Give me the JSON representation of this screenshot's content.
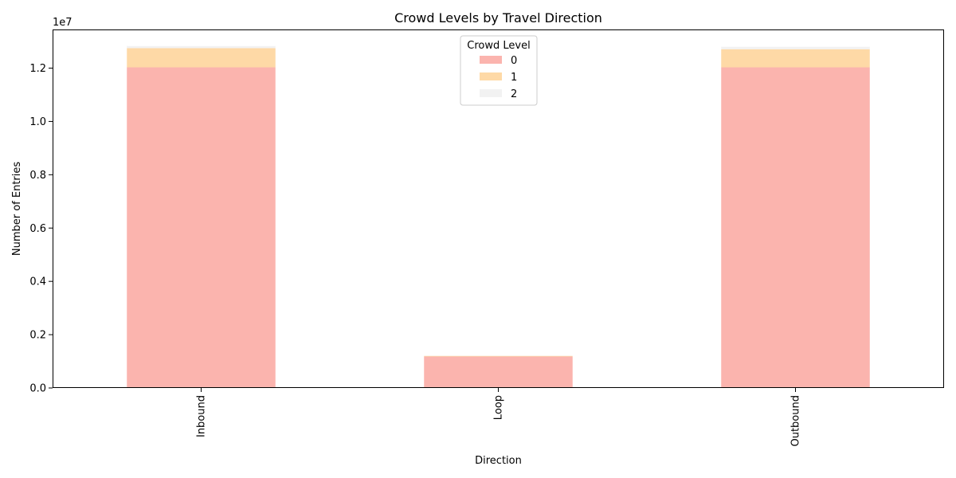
{
  "chart_data": {
    "type": "bar",
    "stacked": true,
    "title": "Crowd Levels by Travel Direction",
    "xlabel": "Direction",
    "ylabel": "Number of Entries",
    "y_offset_label": "1e7",
    "categories": [
      "Inbound",
      "Loop",
      "Outbound"
    ],
    "series": [
      {
        "name": "0",
        "color": "#fbb4ae",
        "values": [
          12030000,
          1180000,
          12030000
        ]
      },
      {
        "name": "1",
        "color": "#fed9a6",
        "values": [
          720000,
          25000,
          680000
        ]
      },
      {
        "name": "2",
        "color": "#f2f2f2",
        "values": [
          80000,
          5000,
          90000
        ]
      }
    ],
    "ylim": [
      0,
      13450000
    ],
    "y_ticks": [
      0,
      2000000,
      4000000,
      6000000,
      8000000,
      10000000,
      12000000
    ],
    "y_tick_labels": [
      "0.0",
      "0.2",
      "0.4",
      "0.6",
      "0.8",
      "1.0",
      "1.2"
    ],
    "legend": {
      "title": "Crowd Level",
      "placement": "top-center"
    },
    "grid": false
  }
}
